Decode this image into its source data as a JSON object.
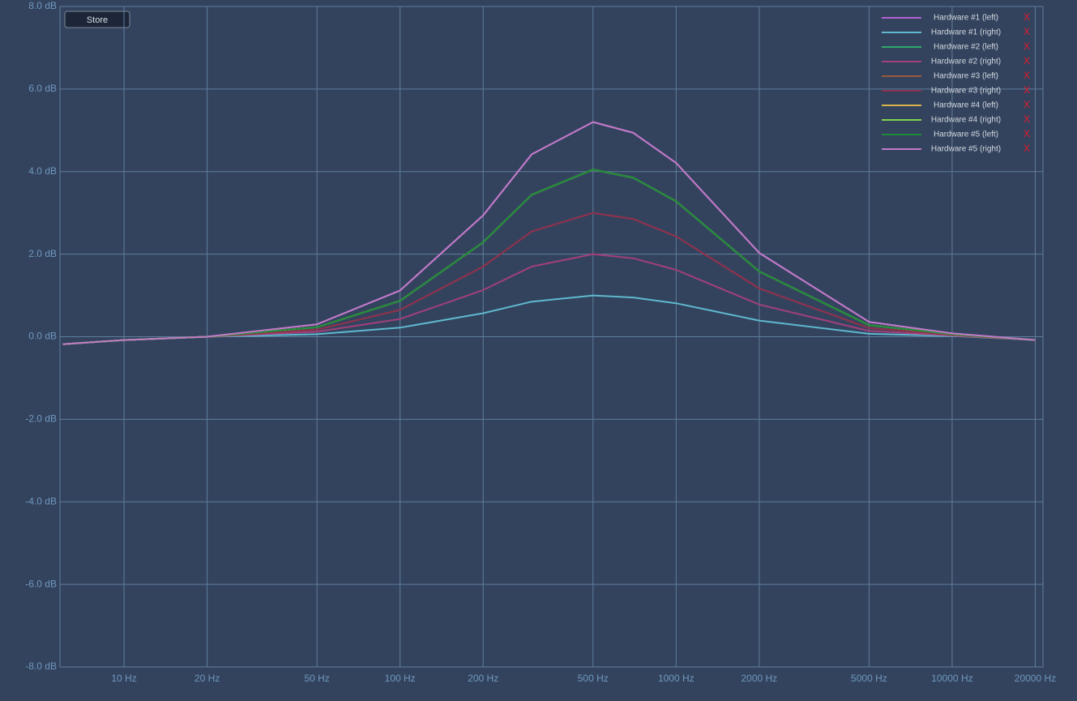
{
  "ui": {
    "store_button": "Store",
    "remove_label": "X"
  },
  "chart_data": {
    "type": "line",
    "log_x": true,
    "grid": true,
    "legend_position": "top-right",
    "x": [
      6,
      10,
      20,
      50,
      100,
      200,
      300,
      500,
      700,
      1000,
      2000,
      5000,
      10000,
      20000
    ],
    "xlim": [
      5.86,
      21330
    ],
    "xticks": [
      {
        "value": 10,
        "label": "10 Hz"
      },
      {
        "value": 20,
        "label": "20 Hz"
      },
      {
        "value": 50,
        "label": "50 Hz"
      },
      {
        "value": 100,
        "label": "100 Hz"
      },
      {
        "value": 200,
        "label": "200 Hz"
      },
      {
        "value": 500,
        "label": "500 Hz"
      },
      {
        "value": 1000,
        "label": "1000 Hz"
      },
      {
        "value": 2000,
        "label": "2000 Hz"
      },
      {
        "value": 5000,
        "label": "5000 Hz"
      },
      {
        "value": 10000,
        "label": "10000 Hz"
      },
      {
        "value": 20000,
        "label": "20000 Hz"
      }
    ],
    "ylim": [
      -8,
      8
    ],
    "yticks": [
      {
        "value": 8,
        "label": "8.0 dB"
      },
      {
        "value": 6,
        "label": "6.0 dB"
      },
      {
        "value": 4,
        "label": "4.0 dB"
      },
      {
        "value": 2,
        "label": "2.0 dB"
      },
      {
        "value": 0,
        "label": "0.0 dB"
      },
      {
        "value": -2,
        "label": "-2.0 dB"
      },
      {
        "value": -4,
        "label": "-4.0 dB"
      },
      {
        "value": -6,
        "label": "-6.0 dB"
      },
      {
        "value": -8,
        "label": "-8.0 dB"
      }
    ],
    "series": [
      {
        "name": "Hardware #1 (left)",
        "color": "#b25fd6",
        "values": [
          -0.18,
          -0.08,
          0,
          0.3,
          1.12,
          2.94,
          4.42,
          5.2,
          4.94,
          4.21,
          2.03,
          0.36,
          0.08,
          -0.08
        ]
      },
      {
        "name": "Hardware #1 (right)",
        "color": "#5fb8cf",
        "values": [
          -0.18,
          -0.08,
          0,
          0.06,
          0.22,
          0.57,
          0.85,
          1.0,
          0.95,
          0.81,
          0.39,
          0.07,
          0.02,
          -0.08
        ]
      },
      {
        "name": "Hardware #2 (left)",
        "color": "#2fa86a",
        "values": [
          -0.18,
          -0.08,
          0,
          0.23,
          0.87,
          2.29,
          3.44,
          4.05,
          3.85,
          3.28,
          1.58,
          0.28,
          0.06,
          -0.08
        ]
      },
      {
        "name": "Hardware #2 (right)",
        "color": "#a2407a",
        "values": [
          -0.18,
          -0.08,
          0,
          0.12,
          0.43,
          1.13,
          1.7,
          2.0,
          1.9,
          1.62,
          0.78,
          0.14,
          0.03,
          -0.08
        ]
      },
      {
        "name": "Hardware #3 (left)",
        "color": "#9a5a3a",
        "values": [
          -0.18,
          -0.08,
          0,
          0.17,
          0.65,
          1.7,
          2.55,
          3.0,
          2.85,
          2.43,
          1.17,
          0.21,
          0.05,
          -0.08
        ]
      },
      {
        "name": "Hardware #3 (right)",
        "color": "#8e2f4f",
        "values": [
          -0.18,
          -0.08,
          0,
          0.17,
          0.65,
          1.7,
          2.55,
          3.0,
          2.85,
          2.43,
          1.17,
          0.21,
          0.05,
          -0.08
        ]
      },
      {
        "name": "Hardware #4 (left)",
        "color": "#d8b44a",
        "values": [
          -0.18,
          -0.08,
          0,
          0.23,
          0.87,
          2.29,
          3.44,
          4.05,
          3.85,
          3.28,
          1.58,
          0.28,
          0.06,
          -0.08
        ]
      },
      {
        "name": "Hardware #4 (right)",
        "color": "#7fd24a",
        "values": [
          -0.18,
          -0.08,
          0,
          0.23,
          0.87,
          2.29,
          3.44,
          4.05,
          3.85,
          3.28,
          1.58,
          0.28,
          0.06,
          -0.08
        ]
      },
      {
        "name": "Hardware #5 (left)",
        "color": "#1f8a3a",
        "values": [
          -0.18,
          -0.08,
          0,
          0.23,
          0.87,
          2.29,
          3.44,
          4.05,
          3.85,
          3.28,
          1.58,
          0.28,
          0.06,
          -0.08
        ]
      },
      {
        "name": "Hardware #5 (right)",
        "color": "#c17bc6",
        "values": [
          -0.18,
          -0.08,
          0,
          0.3,
          1.12,
          2.94,
          4.42,
          5.2,
          4.94,
          4.21,
          2.03,
          0.36,
          0.08,
          -0.08
        ]
      }
    ]
  }
}
